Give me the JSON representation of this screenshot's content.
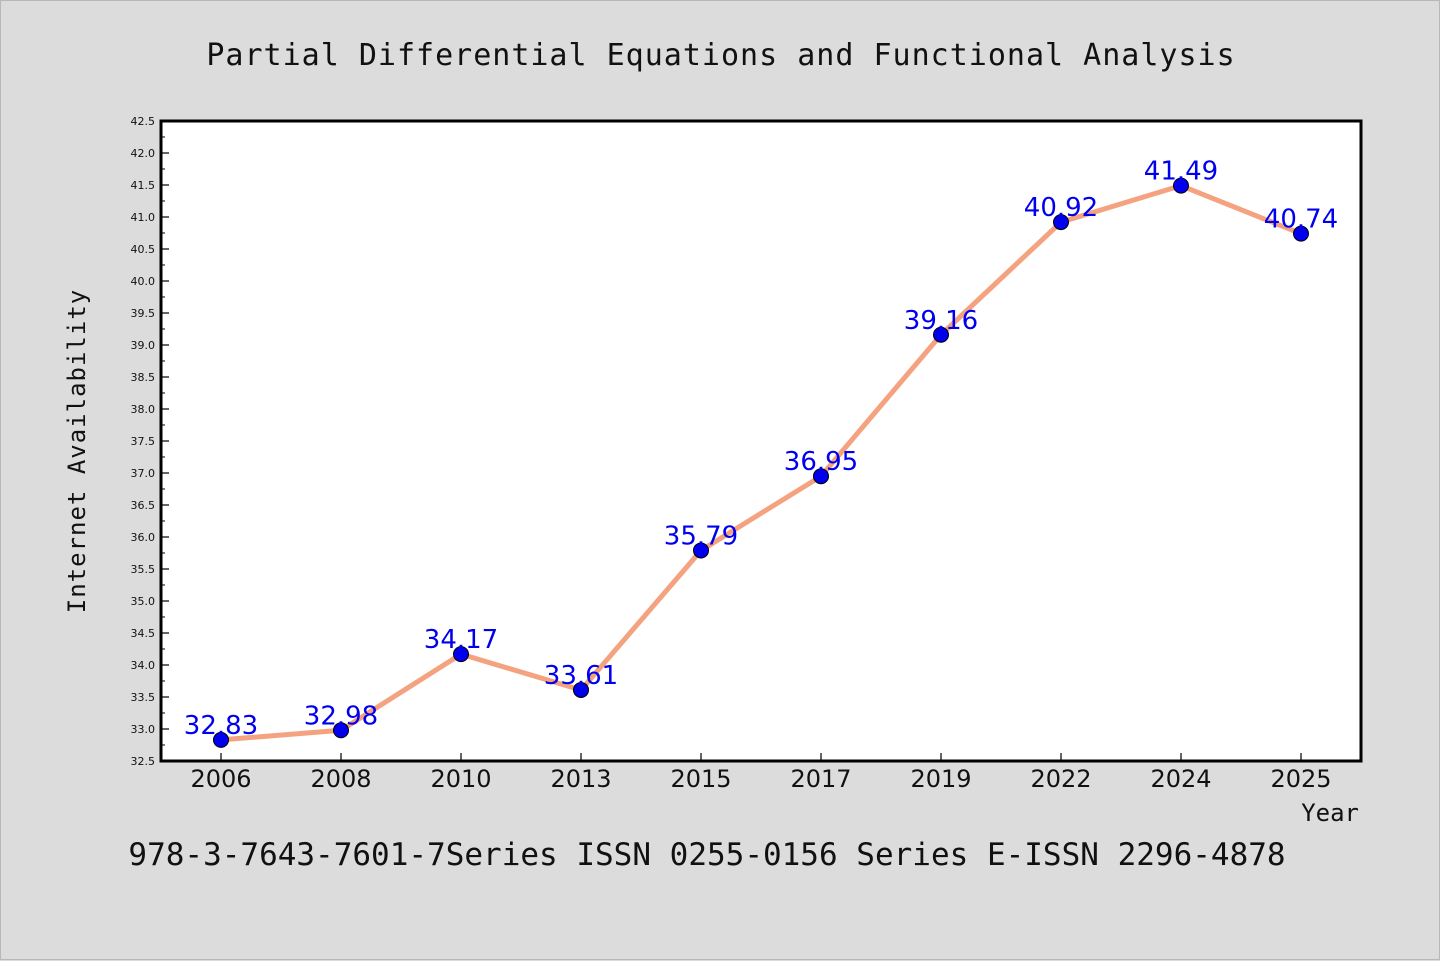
{
  "colors": {
    "background": "#dcdcdc",
    "plot_background": "#ffffff",
    "line": "#f4a27f",
    "marker": "#0000ee",
    "data_label": "#0000ee",
    "axis": "#000000"
  },
  "footer": {
    "text": "978-3-7643-7601-7Series ISSN 0255-0156 Series E-ISSN 2296-4878"
  },
  "chart_data": {
    "type": "line",
    "title": "Partial Differential Equations and Functional Analysis",
    "xlabel": "Year",
    "ylabel": "Internet Availability",
    "categories": [
      "2006",
      "2008",
      "2010",
      "2013",
      "2015",
      "2017",
      "2019",
      "2022",
      "2024",
      "2025"
    ],
    "series": [
      {
        "values": [
          32.83,
          32.98,
          34.17,
          33.61,
          35.79,
          36.95,
          39.16,
          40.92,
          41.49,
          40.74
        ],
        "data_labels": [
          "32.83",
          "32.98",
          "34.17",
          "33.61",
          "35.79",
          "36.95",
          "39.16",
          "40.92",
          "41.49",
          "40.74"
        ]
      }
    ],
    "ylim": [
      32.5,
      42.5
    ],
    "ytick_step": 0.5,
    "ytick_labels": [
      "32.5",
      "33.0",
      "33.5",
      "34.0",
      "34.5",
      "35.0",
      "35.5",
      "36.0",
      "36.5",
      "37.0",
      "37.5",
      "38.0",
      "38.5",
      "39.0",
      "39.5",
      "40.0",
      "40.5",
      "41.0",
      "41.5",
      "42.0",
      "42.5"
    ],
    "grid": false,
    "legend": "none"
  }
}
